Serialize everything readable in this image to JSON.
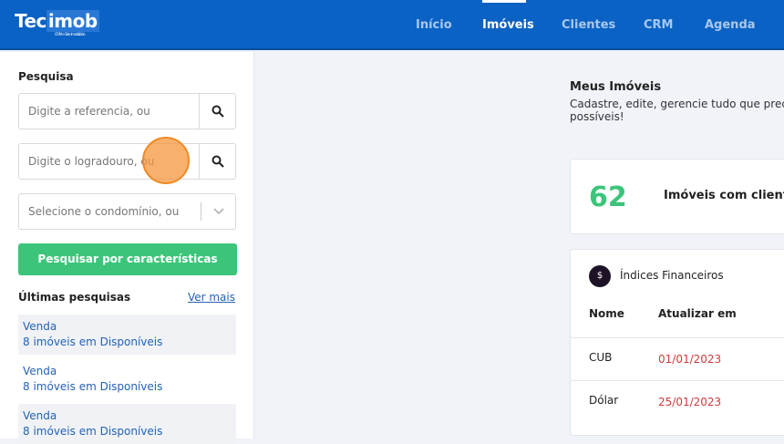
{
  "header": {
    "logo": "Tecimob",
    "logo_left": "Tec",
    "logo_right": "imob",
    "logo_tagline": "CRM e Site Imobiliário",
    "nav": [
      {
        "label": "Início",
        "active": false
      },
      {
        "label": "Imóveis",
        "active": true
      },
      {
        "label": "Clientes",
        "active": false
      },
      {
        "label": "CRM",
        "active": false
      },
      {
        "label": "Agenda",
        "active": false
      }
    ]
  },
  "sidebar": {
    "search_label": "Pesquisa",
    "reference_placeholder": "Digite a referencia, ou",
    "street_placeholder": "Digite o logradouro, ou",
    "condo_placeholder": "Selecione o condomínio, ou",
    "features_button": "Pesquisar por características",
    "recent_label": "Últimas pesquisas",
    "see_more": "Ver mais",
    "recent": [
      {
        "type": "Venda",
        "desc": "8 imóveis em Disponíveis"
      },
      {
        "type": "Venda",
        "desc": "8 imóveis em Disponíveis"
      },
      {
        "type": "Venda",
        "desc": "8 imóveis em Disponíveis"
      }
    ]
  },
  "main": {
    "title": "Meus Imóveis",
    "subtitle_line1": "Cadastre, edite, gerencie tudo que prec",
    "subtitle_line2": "possíveis!",
    "stat_value": "62",
    "stat_label": "Imóveis com client",
    "indices": {
      "title": "Índices Financeiros",
      "columns": [
        "Nome",
        "Atualizar em"
      ],
      "rows": [
        {
          "name": "CUB",
          "date": "01/01/2023"
        },
        {
          "name": "Dólar",
          "date": "25/01/2023"
        }
      ]
    }
  },
  "colors": {
    "header": "#0a62c4",
    "green": "#3cc57a",
    "link": "#2462b5",
    "date": "#d03a3a"
  }
}
